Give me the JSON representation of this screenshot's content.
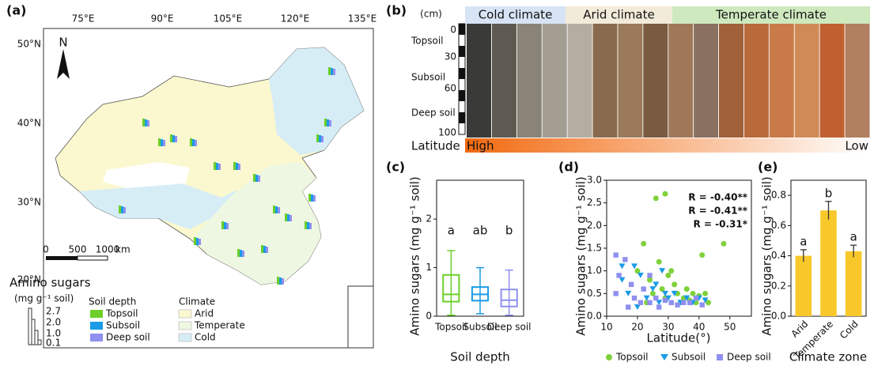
{
  "map": {
    "label": "(a)",
    "lon_labels": [
      "75°E",
      "90°E",
      "105°E",
      "120°E",
      "135°E"
    ],
    "lat_labels": [
      "50°N",
      "40°N",
      "30°N",
      "20°N"
    ],
    "north": "N",
    "scale": [
      "0",
      "500",
      "1000",
      "km"
    ],
    "amino_title": "Amino sugars",
    "amino_unit": "(mg g⁻¹ soil)",
    "amino_ticks": [
      "2.7",
      "2.0",
      "1.0",
      "0.1"
    ],
    "depth_title": "Soil depth",
    "depth_items": [
      "Topsoil",
      "Subsoil",
      "Deep soil"
    ],
    "depth_colors": [
      "#6ccf2a",
      "#1a9be6",
      "#8f8ff0"
    ],
    "climate_title": "Climate",
    "climate_items": [
      "Arid",
      "Temperate",
      "Cold"
    ],
    "climate_colors": [
      "#fbf8cf",
      "#eef7e2",
      "#d6edf6"
    ]
  },
  "profile": {
    "label": "(b)",
    "unit": "(cm)",
    "depths": [
      "0",
      "30",
      "60",
      "100"
    ],
    "layers": [
      "Topsoil",
      "Subsoil",
      "Deep soil"
    ],
    "climates": [
      "Cold climate",
      "Arid climate",
      "Temperate climate"
    ],
    "climate_colors": [
      "#d7e4f5",
      "#f3ebd9",
      "#cfe9bf"
    ],
    "latitude": "Latitude",
    "high": "High",
    "low": "Low"
  },
  "chart_data": [
    {
      "type": "box",
      "label": "(c)",
      "ylabel": "Amino sugars (mg g⁻¹ soil)",
      "xlabel": "Soil depth",
      "categories": [
        "Topsoil",
        "Subsoil",
        "Deep soil"
      ],
      "colors": [
        "#6ccf2a",
        "#1a9be6",
        "#8f8ff0"
      ],
      "boxes": [
        {
          "whislo": 0.02,
          "q1": 0.3,
          "median": 0.45,
          "q3": 0.85,
          "whishi": 1.35
        },
        {
          "whislo": 0.05,
          "q1": 0.32,
          "median": 0.45,
          "q3": 0.6,
          "whishi": 1.0
        },
        {
          "whislo": 0.02,
          "q1": 0.2,
          "median": 0.33,
          "q3": 0.55,
          "whishi": 0.95
        }
      ],
      "annotations": [
        "a",
        "ab",
        "b"
      ],
      "ylim": [
        0,
        2.8
      ],
      "yticks": [
        0,
        1,
        2
      ]
    },
    {
      "type": "scatter",
      "label": "(d)",
      "ylabel": "Amino sugars (mg g⁻¹ soil)",
      "xlabel": "Latitude(°)",
      "xlim": [
        10,
        57
      ],
      "xticks": [
        10,
        20,
        30,
        40,
        50
      ],
      "ylim": [
        0,
        3.0
      ],
      "yticks": [
        {
          "value": 0,
          "label": "0.0"
        },
        0.5,
        {
          "value": 1,
          "label": "1.0"
        },
        1.5,
        {
          "value": 2,
          "label": "2.0"
        },
        2.5,
        {
          "value": 3,
          "label": "3.0"
        }
      ],
      "annotations": [
        "R = -0.40**",
        "R = -0.41**",
        "R = -0.31*"
      ],
      "series": [
        {
          "name": "Topsoil",
          "color": "#7fd13b",
          "marker": "circle",
          "x": [
            26,
            29,
            48,
            41,
            22,
            27,
            31,
            20,
            24,
            25,
            28,
            30,
            33,
            35,
            36,
            38,
            39,
            40,
            42,
            43,
            37,
            34,
            29,
            23,
            32
          ],
          "values": [
            2.6,
            2.7,
            1.6,
            1.35,
            1.6,
            1.2,
            1.0,
            1.0,
            0.8,
            0.5,
            0.6,
            0.9,
            0.5,
            0.4,
            0.6,
            0.5,
            0.3,
            0.45,
            0.5,
            0.3,
            0.35,
            0.3,
            0.4,
            0.3,
            0.7
          ]
        },
        {
          "name": "Subsoil",
          "color": "#1a9be6",
          "marker": "triangle",
          "x": [
            15,
            15,
            17,
            19,
            21,
            23,
            25,
            27,
            28,
            30,
            32,
            34,
            36,
            38,
            40,
            42,
            20,
            26,
            29
          ],
          "values": [
            1.1,
            0.8,
            0.5,
            1.1,
            0.9,
            0.4,
            0.6,
            0.3,
            1.0,
            0.4,
            0.5,
            0.3,
            0.4,
            0.3,
            0.4,
            0.35,
            0.2,
            0.7,
            0.5
          ]
        },
        {
          "name": "Deep soil",
          "color": "#8f8ff0",
          "marker": "square",
          "x": [
            13,
            13,
            14,
            16,
            18,
            19,
            21,
            22,
            24,
            26,
            27,
            29,
            31,
            33,
            35,
            37,
            39,
            41,
            17,
            24
          ],
          "values": [
            1.35,
            0.5,
            0.9,
            1.25,
            0.7,
            0.4,
            0.3,
            0.6,
            0.3,
            0.4,
            0.2,
            0.35,
            0.3,
            0.25,
            0.3,
            0.3,
            0.4,
            0.25,
            0.2,
            0.9
          ]
        }
      ]
    },
    {
      "type": "bar",
      "label": "(e)",
      "ylabel": "Amino sugars (mg g⁻¹ soil)",
      "xlabel": "Climate zone",
      "categories": [
        "Arid",
        "Temperate",
        "Cold"
      ],
      "values": [
        0.4,
        0.7,
        0.43
      ],
      "errors": [
        0.04,
        0.06,
        0.04
      ],
      "annotations": [
        "a",
        "b",
        "a"
      ],
      "color": "#f8c82a",
      "ylim": [
        0,
        0.9
      ],
      "yticks": [
        {
          "value": 0,
          "label": "0.0"
        },
        0.2,
        0.4,
        0.6,
        0.8
      ]
    }
  ]
}
